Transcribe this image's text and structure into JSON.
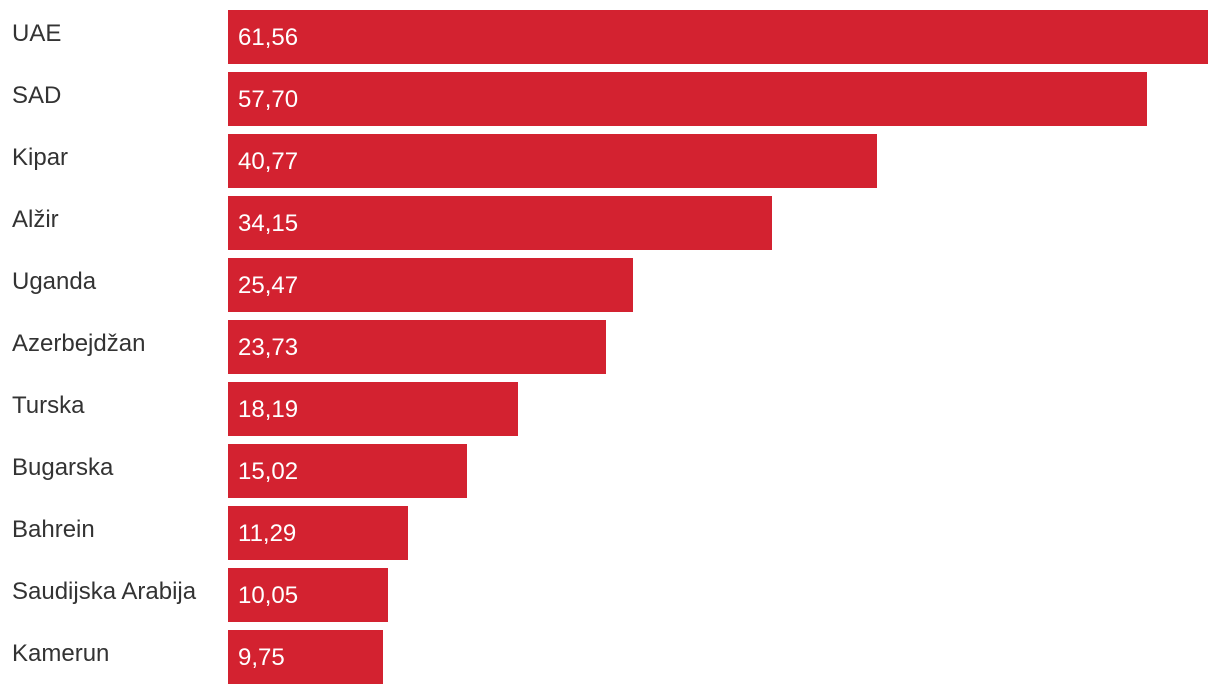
{
  "chart_data": {
    "type": "bar",
    "orientation": "horizontal",
    "categories": [
      "UAE",
      "SAD",
      "Kipar",
      "Alžir",
      "Uganda",
      "Azerbejdžan",
      "Turska",
      "Bugarska",
      "Bahrein",
      "Saudijska Arabija",
      "Kamerun"
    ],
    "values": [
      61.56,
      57.7,
      40.77,
      34.15,
      25.47,
      23.73,
      18.19,
      15.02,
      11.29,
      10.05,
      9.75
    ],
    "value_labels": [
      "61,56",
      "57,70",
      "40,77",
      "34,15",
      "25,47",
      "23,73",
      "18,19",
      "15,02",
      "11,29",
      "10,05",
      "9,75"
    ],
    "title": "",
    "xlabel": "",
    "ylabel": "",
    "xlim": [
      0,
      61.56
    ],
    "grid": false,
    "legend": "none",
    "bar_color": "#d32230"
  }
}
